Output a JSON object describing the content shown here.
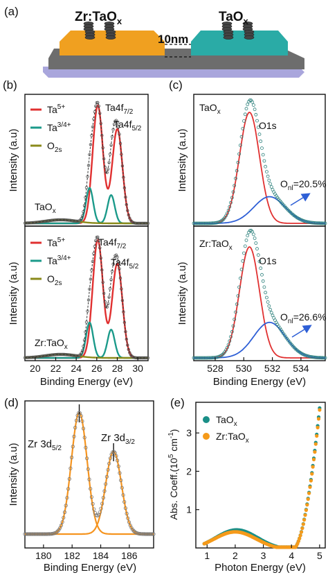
{
  "colors": {
    "ta5": "#e03030",
    "ta34": "#1b9a8a",
    "o2s": "#8a8a1a",
    "fit_blue": "#2e5fd6",
    "data_gray": "#555555",
    "orange_film": "#f0a020",
    "teal_film": "#2aaba6",
    "substrate": "#6d6d6d",
    "base": "#a9a6dc",
    "orange_line": "#f5941f",
    "abs_teal": "#1a8f87",
    "abs_orange": "#f59a1a"
  },
  "panel_a": {
    "letter": "(a)",
    "left_label": "Zr:TaO",
    "left_sub": "x",
    "right_label": "TaO",
    "right_sub": "x",
    "thickness_label": "10nm"
  },
  "chart_data": [
    {
      "panel": "(b)",
      "type": "line",
      "xlabel": "Binding Energy (eV)",
      "ylabel": "Intensity (a.u)",
      "xlim": [
        19,
        31
      ],
      "x_ticks": [
        "20",
        "22",
        "24",
        "26",
        "28",
        "30"
      ],
      "legend": [
        {
          "main": "Ta",
          "sup": "5+"
        },
        {
          "main": "Ta",
          "sup": "3/4+"
        },
        {
          "main": "O",
          "sub": "2s"
        }
      ],
      "peak_labels": [
        {
          "main": "Ta4f",
          "sub": "7/2"
        },
        {
          "main": "Ta4f",
          "sub": "5/2"
        }
      ],
      "subplots": [
        {
          "sample": {
            "main": "TaO",
            "sub": "x"
          },
          "series": [
            {
              "component": "Ta5+",
              "centers": [
                26.1,
                28.0
              ],
              "heights": [
                1.0,
                0.8
              ],
              "width": 0.5
            },
            {
              "component": "Ta3/4+",
              "centers": [
                25.3,
                27.4
              ],
              "heights": [
                0.3,
                0.24
              ],
              "width": 0.35
            },
            {
              "component": "O2s",
              "centers": [
                22.5
              ],
              "heights": [
                0.03
              ],
              "width": 1.5
            }
          ]
        },
        {
          "sample": {
            "main": "Zr:TaO",
            "sub": "x"
          },
          "series": [
            {
              "component": "Ta5+",
              "centers": [
                26.1,
                28.0
              ],
              "heights": [
                1.0,
                0.8
              ],
              "width": 0.5
            },
            {
              "component": "Ta3/4+",
              "centers": [
                25.3,
                27.4
              ],
              "heights": [
                0.3,
                0.24
              ],
              "width": 0.35
            },
            {
              "component": "O2s",
              "centers": [
                22.5
              ],
              "heights": [
                0.03
              ],
              "width": 1.5
            }
          ]
        }
      ]
    },
    {
      "panel": "(c)",
      "type": "line",
      "xlabel": "Binding Energy (eV)",
      "ylabel": "Intensity (a.u)",
      "xlim": [
        526.5,
        535.7
      ],
      "x_ticks": [
        "528",
        "530",
        "532",
        "534"
      ],
      "subplots": [
        {
          "sample": {
            "main": "TaO",
            "sub": "x"
          },
          "peak_label": "O1s",
          "onl_label": {
            "main": "O",
            "sub": "nl",
            "tail": "=20.5%"
          },
          "series": [
            {
              "component": "lattice O",
              "center": 530.4,
              "height": 1.0,
              "width": 0.7
            },
            {
              "component": "non-lattice O",
              "center": 531.8,
              "height": 0.24,
              "width": 1.1
            }
          ]
        },
        {
          "sample": {
            "main": "Zr:TaO",
            "sub": "x"
          },
          "peak_label": "O1s",
          "onl_label": {
            "main": "O",
            "sub": "nl",
            "tail": "=26.6%"
          },
          "series": [
            {
              "component": "lattice O",
              "center": 530.4,
              "height": 1.0,
              "width": 0.7
            },
            {
              "component": "non-lattice O",
              "center": 531.8,
              "height": 0.32,
              "width": 1.1
            }
          ]
        }
      ]
    },
    {
      "panel": "(d)",
      "type": "line",
      "xlabel": "Binding Energy (eV)",
      "ylabel": "Intensity (a.u)",
      "xlim": [
        178.7,
        187.7
      ],
      "x_ticks": [
        "180",
        "182",
        "184",
        "186"
      ],
      "peak_labels": [
        {
          "main": "Zr 3d",
          "sub": "5/2"
        },
        {
          "main": "Zr 3d",
          "sub": "3/2"
        }
      ],
      "series": [
        {
          "component": "Zr 3d5/2",
          "center": 182.5,
          "height": 1.0,
          "width": 0.55
        },
        {
          "component": "Zr 3d3/2",
          "center": 184.9,
          "height": 0.68,
          "width": 0.55
        }
      ]
    },
    {
      "panel": "(e)",
      "type": "line",
      "xlabel": "Photon Energy (eV)",
      "ylabel": "Abs. Coeff.(10",
      "ylabel_sup": "5",
      "ylabel_tail": " cm",
      "ylabel_sup2": "-1",
      "ylabel_end": ")",
      "xlim": [
        0.6,
        5.2
      ],
      "ylim": [
        0,
        3.8
      ],
      "x_ticks": [
        "1",
        "2",
        "3",
        "4",
        "5"
      ],
      "y_ticks": [
        "1",
        "2",
        "3"
      ],
      "legend": [
        {
          "main": "TaO",
          "sub": "x"
        },
        {
          "main": "Zr:TaO",
          "sub": "x"
        }
      ],
      "series": [
        {
          "name": "TaOx",
          "hump_center": 2.05,
          "hump_height": 0.52,
          "edge": 4.05,
          "end_value": 3.7
        },
        {
          "name": "Zr:TaOx",
          "hump_center": 2.0,
          "hump_height": 0.47,
          "edge": 4.05,
          "end_value": 3.65
        }
      ]
    }
  ]
}
